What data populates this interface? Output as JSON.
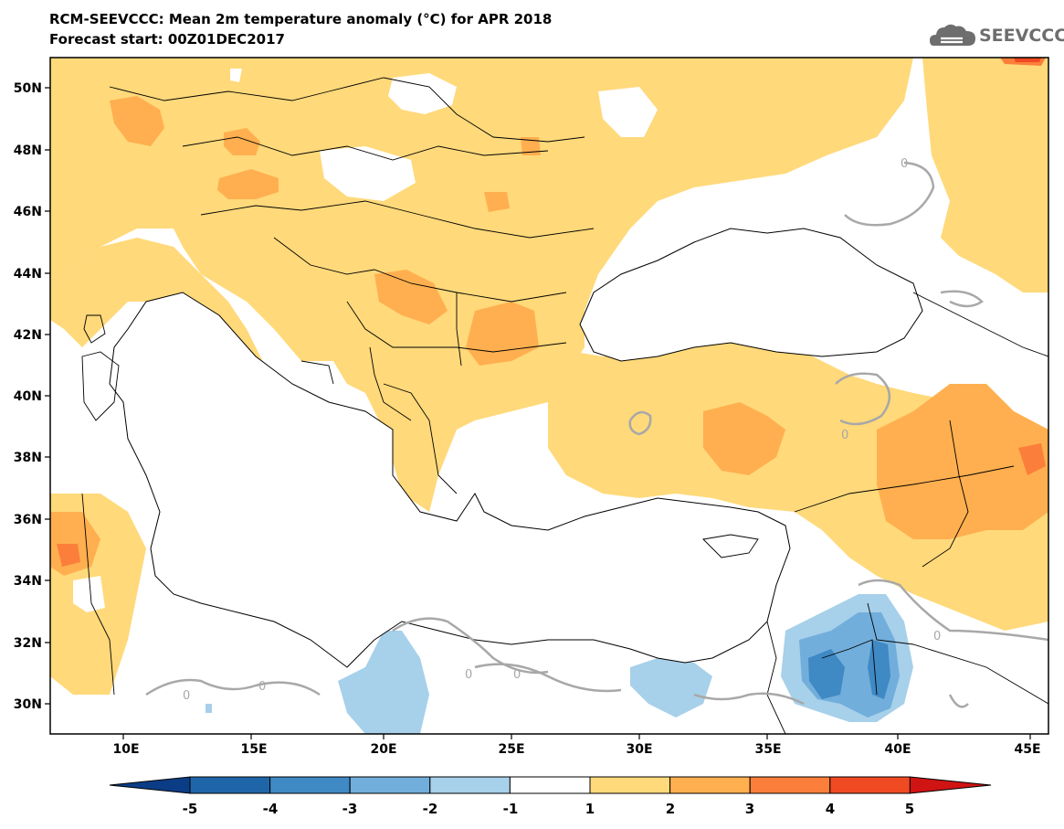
{
  "header": {
    "title": "RCM-SEEVCCC: Mean 2m temperature anomaly (°C) for APR 2018",
    "subtitle": "Forecast start: 00Z01DEC2017",
    "logo_text": "SEEVCCC"
  },
  "map": {
    "variable": "Mean 2m temperature anomaly",
    "unit": "°C",
    "lon_labels": [
      "10E",
      "15E",
      "20E",
      "25E",
      "30E",
      "35E",
      "40E",
      "45E"
    ],
    "lat_labels": [
      "50N",
      "48N",
      "46N",
      "44N",
      "42N",
      "40N",
      "38N",
      "36N",
      "34N",
      "32N",
      "30N"
    ],
    "contour_labels": [
      "0",
      "0",
      "0",
      "0",
      "0",
      "0",
      "0"
    ]
  },
  "colorbar": {
    "levels": [
      "-5",
      "-4",
      "-3",
      "-2",
      "-1",
      "1",
      "2",
      "3",
      "4",
      "5"
    ],
    "colors": [
      "#0b3d86",
      "#1f66a8",
      "#3f89c4",
      "#72aedb",
      "#a7d0ea",
      "#ffffff",
      "#ffd97a",
      "#ffaf4f",
      "#fb7f3a",
      "#f04a23",
      "#d01313"
    ]
  }
}
